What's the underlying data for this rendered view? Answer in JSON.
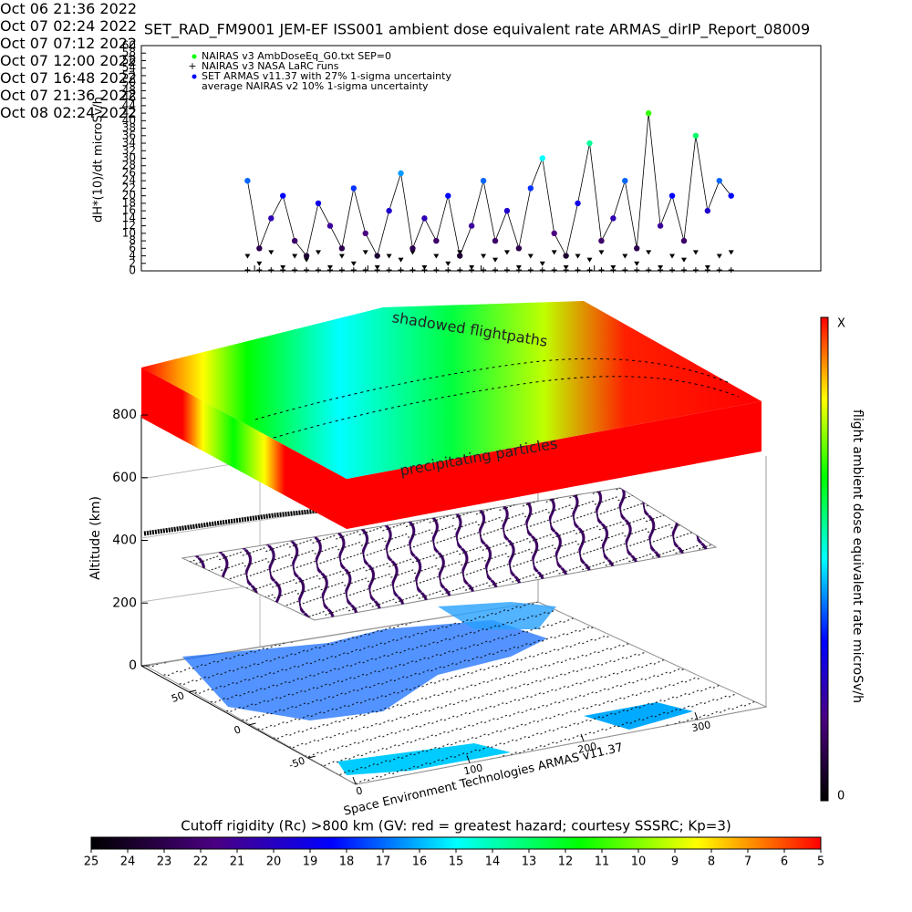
{
  "chart_data": [
    {
      "type": "scatter",
      "title": "SET_RAD_FM9001  JEM-EF ISS001 ambient dose equivalent rate ARMAS_dirIP_Report_08009",
      "y_label": "dH*(10)/dt microSv/h",
      "xlim": [
        "2022-10-06T21:36",
        "2022-10-08T02:24"
      ],
      "xticks": [
        {
          "value": "2022-10-06T21:36",
          "label": "Oct 06\n21:36 2022"
        },
        {
          "value": "2022-10-07T02:24",
          "label": "Oct 07\n02:24 2022"
        },
        {
          "value": "2022-10-07T07:12",
          "label": "Oct 07\n07:12 2022"
        },
        {
          "value": "2022-10-07T12:00",
          "label": "Oct 07\n12:00 2022"
        },
        {
          "value": "2022-10-07T16:48",
          "label": "Oct 07\n16:48 2022"
        },
        {
          "value": "2022-10-07T21:36",
          "label": "Oct 07\n21:36 2022"
        },
        {
          "value": "2022-10-08T02:24",
          "label": "Oct 08\n02:24 2022"
        }
      ],
      "ylim": [
        0,
        60
      ],
      "yticks": [
        0,
        2,
        4,
        6,
        8,
        10,
        12,
        14,
        16,
        18,
        20,
        22,
        24,
        26,
        28,
        30,
        32,
        34,
        36,
        38,
        40,
        42,
        44,
        46,
        48,
        50,
        52,
        54,
        56,
        58,
        60
      ],
      "colorscale": [
        "#000000",
        "#4b0082",
        "#0000ff",
        "#00ffff",
        "#00ff00",
        "#ffff00",
        "#ff0000"
      ],
      "x": [
        "2022-10-07T02:06",
        "2022-10-07T02:36",
        "2022-10-07T03:06",
        "2022-10-07T03:36",
        "2022-10-07T04:06",
        "2022-10-07T04:36",
        "2022-10-07T05:06",
        "2022-10-07T05:36",
        "2022-10-07T06:06",
        "2022-10-07T06:36",
        "2022-10-07T07:06",
        "2022-10-07T07:36",
        "2022-10-07T08:06",
        "2022-10-07T08:36",
        "2022-10-07T09:06",
        "2022-10-07T09:36",
        "2022-10-07T10:06",
        "2022-10-07T10:36",
        "2022-10-07T11:06",
        "2022-10-07T11:36",
        "2022-10-07T12:06",
        "2022-10-07T12:36",
        "2022-10-07T13:06",
        "2022-10-07T13:36",
        "2022-10-07T14:06",
        "2022-10-07T14:36",
        "2022-10-07T15:06",
        "2022-10-07T15:36",
        "2022-10-07T16:06",
        "2022-10-07T16:36",
        "2022-10-07T17:06",
        "2022-10-07T17:36",
        "2022-10-07T18:06",
        "2022-10-07T18:36",
        "2022-10-07T19:06",
        "2022-10-07T19:36",
        "2022-10-07T20:06",
        "2022-10-07T20:36",
        "2022-10-07T21:06",
        "2022-10-07T21:36",
        "2022-10-07T22:06",
        "2022-10-07T22:36"
      ],
      "series": [
        {
          "name": "NAIRAS v3 AmbDoseEq_G0.txt SEP=0",
          "color": "#000000",
          "marker": "triangle",
          "values": [
            4,
            2,
            5,
            1,
            4,
            3,
            5,
            1,
            4,
            2,
            5,
            1,
            4,
            3,
            5,
            1,
            4,
            2,
            5,
            1,
            4,
            3,
            5,
            1,
            4,
            2,
            5,
            1,
            4,
            3,
            5,
            1,
            4,
            2,
            5,
            1,
            4,
            3,
            5,
            1,
            4,
            5
          ]
        },
        {
          "name": "NAIRAS v3 NASA LaRC runs",
          "color": "#000000",
          "marker": "plus",
          "values": [
            0,
            0,
            0,
            0,
            0,
            0,
            0,
            0,
            0,
            0,
            0,
            0,
            0,
            0,
            0,
            0,
            0,
            0,
            0,
            0,
            0,
            0,
            0,
            0,
            0,
            0,
            0,
            0,
            0,
            0,
            0,
            0,
            0,
            0,
            0,
            0,
            0,
            0,
            0,
            0,
            0,
            0
          ]
        },
        {
          "name": "SET ARMAS v11.37 with 27% 1-sigma uncertainty",
          "color": "#0000ff",
          "marker": "colored-dot",
          "values": [
            24,
            6,
            14,
            20,
            8,
            4,
            18,
            12,
            6,
            22,
            10,
            4,
            16,
            26,
            6,
            14,
            8,
            20,
            4,
            12,
            24,
            8,
            16,
            6,
            22,
            30,
            10,
            4,
            18,
            34,
            8,
            14,
            24,
            6,
            42,
            12,
            20,
            8,
            36,
            16,
            24,
            20
          ]
        }
      ],
      "legend_notes": [
        "average NAIRAS v2 10% 1-sigma uncertainty"
      ]
    }
  ],
  "panel3d": {
    "shadow_text": "shadowed flightpaths",
    "particles_text": "precipitating particles",
    "credit": "Space Environment Technologies ARMAS v11.37",
    "altitude": {
      "label": "Altitude (km)",
      "lim": [
        0,
        800
      ],
      "ticks": [
        0,
        200,
        400,
        600,
        800
      ]
    },
    "longitude": {
      "lim": [
        0,
        360
      ],
      "ticks": [
        0,
        100,
        200,
        300
      ]
    },
    "latitude": {
      "lim": [
        -90,
        90
      ],
      "ticks": [
        -50,
        0,
        50
      ]
    }
  },
  "colorbar_right": {
    "label": "flight ambient dose equivalent rate microSv/h",
    "top_label": "X",
    "bottom_label": "0"
  },
  "colorbar_bottom": {
    "title": "Cutoff rigidity (Rc) >800 km (GV: red = greatest hazard; courtesy SSSRC; Kp=3)",
    "lim": [
      25,
      5
    ],
    "ticks": [
      25,
      24,
      23,
      22,
      21,
      20,
      19,
      18,
      17,
      16,
      15,
      14,
      13,
      12,
      11,
      10,
      9,
      8,
      7,
      6,
      5
    ]
  }
}
